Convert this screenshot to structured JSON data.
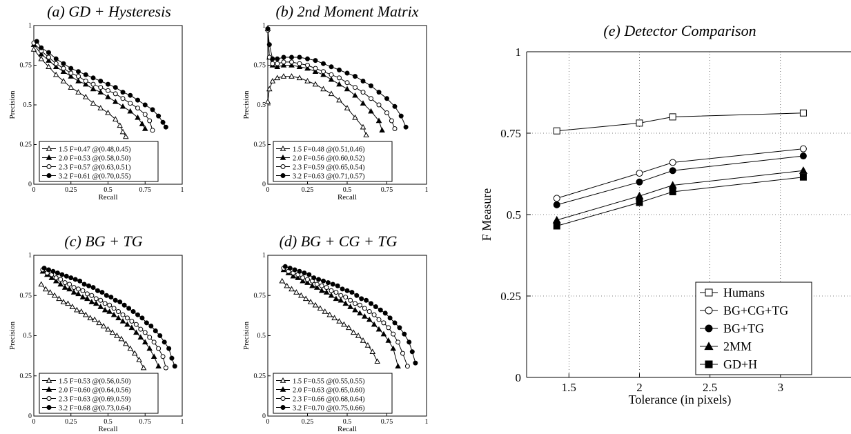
{
  "chart_data": [
    {
      "type": "line",
      "title": "(a) GD + Hysteresis",
      "xlabel": "Recall",
      "ylabel": "Precision",
      "xlim": [
        0,
        1
      ],
      "ylim": [
        0,
        1
      ],
      "xticks": [
        "0",
        "0.25",
        "0.5",
        "0.75",
        "1"
      ],
      "yticks": [
        "0",
        "0.25",
        "0.5",
        "0.75",
        "1"
      ],
      "grid": false,
      "legend_position": "bottom-left",
      "series": [
        {
          "name": "1.5 F=0.47 @(0.48,0.45)",
          "marker": "triangle-open",
          "x": [
            0.0,
            0.05,
            0.1,
            0.15,
            0.2,
            0.25,
            0.3,
            0.35,
            0.4,
            0.45,
            0.5,
            0.55,
            0.58,
            0.6,
            0.62
          ],
          "y": [
            0.85,
            0.79,
            0.74,
            0.69,
            0.65,
            0.61,
            0.58,
            0.55,
            0.51,
            0.48,
            0.45,
            0.41,
            0.37,
            0.33,
            0.3
          ]
        },
        {
          "name": "2.0 F=0.53 @(0.58,0.50)",
          "marker": "triangle-filled",
          "x": [
            0.0,
            0.05,
            0.1,
            0.15,
            0.2,
            0.25,
            0.3,
            0.35,
            0.4,
            0.45,
            0.5,
            0.55,
            0.6,
            0.65,
            0.7,
            0.73,
            0.75
          ],
          "y": [
            0.88,
            0.82,
            0.78,
            0.74,
            0.71,
            0.68,
            0.65,
            0.63,
            0.6,
            0.58,
            0.55,
            0.52,
            0.49,
            0.46,
            0.42,
            0.38,
            0.35
          ]
        },
        {
          "name": "2.3 F=0.57 @(0.63,0.51)",
          "marker": "circle-open",
          "x": [
            0.0,
            0.05,
            0.1,
            0.15,
            0.2,
            0.25,
            0.3,
            0.35,
            0.4,
            0.45,
            0.5,
            0.55,
            0.6,
            0.65,
            0.7,
            0.75,
            0.78,
            0.8
          ],
          "y": [
            0.89,
            0.84,
            0.8,
            0.76,
            0.73,
            0.7,
            0.68,
            0.65,
            0.63,
            0.61,
            0.59,
            0.57,
            0.54,
            0.51,
            0.48,
            0.44,
            0.4,
            0.34
          ]
        },
        {
          "name": "3.2 F=0.61 @(0.70,0.55)",
          "marker": "circle-filled",
          "x": [
            0.02,
            0.05,
            0.1,
            0.15,
            0.2,
            0.25,
            0.3,
            0.35,
            0.4,
            0.45,
            0.5,
            0.55,
            0.6,
            0.65,
            0.7,
            0.75,
            0.8,
            0.84,
            0.87,
            0.89
          ],
          "y": [
            0.9,
            0.86,
            0.83,
            0.79,
            0.76,
            0.73,
            0.71,
            0.69,
            0.67,
            0.65,
            0.63,
            0.61,
            0.58,
            0.56,
            0.53,
            0.5,
            0.47,
            0.43,
            0.39,
            0.36
          ]
        }
      ]
    },
    {
      "type": "line",
      "title": "(b) 2nd Moment Matrix",
      "xlabel": "Recall",
      "ylabel": "Precision",
      "xlim": [
        0,
        1
      ],
      "ylim": [
        0,
        1
      ],
      "xticks": [
        "0",
        "0.25",
        "0.5",
        "0.75",
        "1"
      ],
      "yticks": [
        "0",
        "0.25",
        "0.5",
        "0.75",
        "1"
      ],
      "grid": false,
      "legend_position": "bottom-left",
      "series": [
        {
          "name": "1.5 F=0.48 @(0.51,0.46)",
          "marker": "triangle-open",
          "x": [
            0.0,
            0.01,
            0.03,
            0.06,
            0.1,
            0.15,
            0.2,
            0.25,
            0.3,
            0.35,
            0.4,
            0.45,
            0.5,
            0.55,
            0.6,
            0.62
          ],
          "y": [
            0.52,
            0.6,
            0.65,
            0.67,
            0.68,
            0.68,
            0.67,
            0.65,
            0.63,
            0.6,
            0.57,
            0.53,
            0.48,
            0.42,
            0.36,
            0.31
          ]
        },
        {
          "name": "2.0 F=0.56 @(0.60,0.52)",
          "marker": "triangle-filled",
          "x": [
            0.0,
            0.01,
            0.03,
            0.06,
            0.1,
            0.15,
            0.2,
            0.25,
            0.3,
            0.35,
            0.4,
            0.45,
            0.5,
            0.55,
            0.6,
            0.65,
            0.7,
            0.72
          ],
          "y": [
            0.98,
            0.8,
            0.75,
            0.74,
            0.75,
            0.75,
            0.74,
            0.73,
            0.71,
            0.69,
            0.66,
            0.63,
            0.6,
            0.56,
            0.51,
            0.46,
            0.4,
            0.34
          ]
        },
        {
          "name": "2.3 F=0.59 @(0.65,0.54)",
          "marker": "circle-open",
          "x": [
            0.0,
            0.01,
            0.03,
            0.06,
            0.1,
            0.15,
            0.2,
            0.25,
            0.3,
            0.35,
            0.4,
            0.45,
            0.5,
            0.55,
            0.6,
            0.65,
            0.7,
            0.75,
            0.78,
            0.8
          ],
          "y": [
            0.97,
            0.8,
            0.76,
            0.76,
            0.77,
            0.77,
            0.76,
            0.75,
            0.73,
            0.71,
            0.69,
            0.67,
            0.64,
            0.61,
            0.58,
            0.54,
            0.5,
            0.45,
            0.4,
            0.35
          ]
        },
        {
          "name": "3.2 F=0.63 @(0.71,0.57)",
          "marker": "circle-filled",
          "x": [
            0.0,
            0.01,
            0.03,
            0.06,
            0.1,
            0.15,
            0.2,
            0.25,
            0.3,
            0.35,
            0.4,
            0.45,
            0.5,
            0.55,
            0.6,
            0.65,
            0.7,
            0.75,
            0.8,
            0.84,
            0.87
          ],
          "y": [
            0.98,
            0.88,
            0.79,
            0.79,
            0.8,
            0.8,
            0.8,
            0.79,
            0.78,
            0.76,
            0.74,
            0.72,
            0.7,
            0.68,
            0.65,
            0.62,
            0.58,
            0.54,
            0.49,
            0.43,
            0.36
          ]
        }
      ]
    },
    {
      "type": "line",
      "title": "(c) BG + TG",
      "xlabel": "Recall",
      "ylabel": "Precision",
      "xlim": [
        0,
        1
      ],
      "ylim": [
        0,
        1
      ],
      "xticks": [
        "0",
        "0.25",
        "0.5",
        "0.75",
        "1"
      ],
      "yticks": [
        "0",
        "0.25",
        "0.5",
        "0.75",
        "1"
      ],
      "grid": false,
      "legend_position": "bottom-left",
      "series": [
        {
          "name": "1.5 F=0.53 @(0.56,0.50)",
          "marker": "triangle-open",
          "x": [
            0.05,
            0.08,
            0.11,
            0.14,
            0.17,
            0.2,
            0.23,
            0.26,
            0.29,
            0.32,
            0.35,
            0.38,
            0.41,
            0.44,
            0.47,
            0.5,
            0.53,
            0.56,
            0.59,
            0.62,
            0.65,
            0.68,
            0.71,
            0.74
          ],
          "y": [
            0.82,
            0.79,
            0.77,
            0.75,
            0.73,
            0.71,
            0.7,
            0.68,
            0.66,
            0.65,
            0.63,
            0.61,
            0.6,
            0.58,
            0.56,
            0.54,
            0.52,
            0.5,
            0.48,
            0.45,
            0.42,
            0.39,
            0.35,
            0.3
          ]
        },
        {
          "name": "2.0 F=0.60 @(0.64,0.56)",
          "marker": "triangle-filled",
          "x": [
            0.06,
            0.09,
            0.12,
            0.15,
            0.18,
            0.21,
            0.24,
            0.27,
            0.3,
            0.33,
            0.36,
            0.39,
            0.42,
            0.45,
            0.48,
            0.51,
            0.54,
            0.57,
            0.6,
            0.63,
            0.66,
            0.69,
            0.72,
            0.75,
            0.78,
            0.81,
            0.84
          ],
          "y": [
            0.9,
            0.88,
            0.86,
            0.84,
            0.82,
            0.8,
            0.79,
            0.77,
            0.76,
            0.74,
            0.73,
            0.71,
            0.7,
            0.68,
            0.66,
            0.65,
            0.63,
            0.61,
            0.59,
            0.57,
            0.55,
            0.52,
            0.49,
            0.46,
            0.42,
            0.37,
            0.31
          ]
        },
        {
          "name": "2.3 F=0.63 @(0.69,0.59)",
          "marker": "circle-open",
          "x": [
            0.06,
            0.09,
            0.12,
            0.15,
            0.18,
            0.21,
            0.24,
            0.27,
            0.3,
            0.33,
            0.36,
            0.39,
            0.42,
            0.45,
            0.48,
            0.51,
            0.54,
            0.57,
            0.6,
            0.63,
            0.66,
            0.69,
            0.72,
            0.75,
            0.78,
            0.81,
            0.84,
            0.87,
            0.89
          ],
          "y": [
            0.91,
            0.89,
            0.88,
            0.86,
            0.85,
            0.83,
            0.82,
            0.8,
            0.79,
            0.78,
            0.76,
            0.75,
            0.73,
            0.72,
            0.7,
            0.69,
            0.67,
            0.65,
            0.63,
            0.61,
            0.59,
            0.57,
            0.54,
            0.52,
            0.49,
            0.46,
            0.42,
            0.37,
            0.3
          ]
        },
        {
          "name": "3.2 F=0.68 @(0.73,0.64)",
          "marker": "circle-filled",
          "x": [
            0.07,
            0.1,
            0.13,
            0.16,
            0.19,
            0.22,
            0.25,
            0.28,
            0.31,
            0.34,
            0.37,
            0.4,
            0.43,
            0.46,
            0.49,
            0.52,
            0.55,
            0.58,
            0.61,
            0.64,
            0.67,
            0.7,
            0.73,
            0.76,
            0.79,
            0.82,
            0.85,
            0.88,
            0.91,
            0.93,
            0.95
          ],
          "y": [
            0.92,
            0.91,
            0.9,
            0.89,
            0.88,
            0.87,
            0.86,
            0.85,
            0.84,
            0.82,
            0.81,
            0.8,
            0.78,
            0.77,
            0.75,
            0.74,
            0.72,
            0.71,
            0.69,
            0.67,
            0.65,
            0.63,
            0.61,
            0.58,
            0.56,
            0.53,
            0.5,
            0.46,
            0.42,
            0.36,
            0.31
          ]
        }
      ]
    },
    {
      "type": "line",
      "title": "(d) BG + CG + TG",
      "xlabel": "Recall",
      "ylabel": "Precision",
      "xlim": [
        0,
        1
      ],
      "ylim": [
        0,
        1
      ],
      "xticks": [
        "0",
        "0.25",
        "0.5",
        "0.75",
        "1"
      ],
      "yticks": [
        "0",
        "0.25",
        "0.5",
        "0.75",
        "1"
      ],
      "grid": false,
      "legend_position": "bottom-left",
      "series": [
        {
          "name": "1.5 F=0.55 @(0.55,0.55)",
          "marker": "triangle-open",
          "x": [
            0.09,
            0.12,
            0.15,
            0.18,
            0.21,
            0.24,
            0.27,
            0.3,
            0.33,
            0.36,
            0.39,
            0.42,
            0.45,
            0.48,
            0.51,
            0.54,
            0.57,
            0.6,
            0.63,
            0.66,
            0.69
          ],
          "y": [
            0.84,
            0.81,
            0.79,
            0.77,
            0.75,
            0.73,
            0.71,
            0.69,
            0.67,
            0.65,
            0.63,
            0.61,
            0.59,
            0.57,
            0.55,
            0.52,
            0.5,
            0.47,
            0.44,
            0.4,
            0.34
          ]
        },
        {
          "name": "2.0 F=0.63 @(0.65,0.60)",
          "marker": "triangle-filled",
          "x": [
            0.1,
            0.13,
            0.16,
            0.19,
            0.22,
            0.25,
            0.28,
            0.31,
            0.34,
            0.37,
            0.4,
            0.43,
            0.46,
            0.49,
            0.52,
            0.55,
            0.58,
            0.61,
            0.64,
            0.67,
            0.7,
            0.73,
            0.76,
            0.79,
            0.82
          ],
          "y": [
            0.91,
            0.89,
            0.87,
            0.86,
            0.84,
            0.83,
            0.81,
            0.8,
            0.78,
            0.77,
            0.75,
            0.73,
            0.72,
            0.7,
            0.68,
            0.66,
            0.64,
            0.62,
            0.6,
            0.57,
            0.54,
            0.51,
            0.47,
            0.42,
            0.31
          ]
        },
        {
          "name": "2.3 F=0.66 @(0.68,0.64)",
          "marker": "circle-open",
          "x": [
            0.1,
            0.13,
            0.16,
            0.19,
            0.22,
            0.25,
            0.28,
            0.31,
            0.34,
            0.37,
            0.4,
            0.43,
            0.46,
            0.49,
            0.52,
            0.55,
            0.58,
            0.61,
            0.64,
            0.67,
            0.7,
            0.73,
            0.76,
            0.79,
            0.82,
            0.85,
            0.88
          ],
          "y": [
            0.92,
            0.9,
            0.89,
            0.88,
            0.86,
            0.85,
            0.84,
            0.82,
            0.81,
            0.8,
            0.78,
            0.77,
            0.75,
            0.74,
            0.72,
            0.7,
            0.69,
            0.67,
            0.65,
            0.63,
            0.6,
            0.58,
            0.55,
            0.51,
            0.46,
            0.39,
            0.31
          ]
        },
        {
          "name": "3.2 F=0.70 @(0.75,0.66)",
          "marker": "circle-filled",
          "x": [
            0.11,
            0.14,
            0.17,
            0.2,
            0.23,
            0.26,
            0.29,
            0.32,
            0.35,
            0.38,
            0.41,
            0.44,
            0.47,
            0.5,
            0.53,
            0.56,
            0.59,
            0.62,
            0.65,
            0.68,
            0.71,
            0.74,
            0.77,
            0.8,
            0.83,
            0.86,
            0.89,
            0.91,
            0.93
          ],
          "y": [
            0.93,
            0.92,
            0.91,
            0.9,
            0.89,
            0.88,
            0.86,
            0.85,
            0.84,
            0.83,
            0.82,
            0.81,
            0.79,
            0.78,
            0.77,
            0.75,
            0.73,
            0.72,
            0.7,
            0.68,
            0.66,
            0.64,
            0.61,
            0.58,
            0.55,
            0.51,
            0.46,
            0.4,
            0.33
          ]
        }
      ]
    },
    {
      "type": "line",
      "title": "(e) Detector Comparison",
      "xlabel": "Tolerance (in pixels)",
      "ylabel": "F Measure",
      "xlim": [
        1.2,
        3.5
      ],
      "ylim": [
        0,
        1
      ],
      "xticks": [
        "1.5",
        "2",
        "2.5",
        "3"
      ],
      "yticks": [
        "0",
        "0.25",
        "0.5",
        "0.75",
        "1"
      ],
      "grid": true,
      "legend_position": "bottom-right",
      "x": [
        1.414,
        2.0,
        2.236,
        3.162
      ],
      "series": [
        {
          "name": "Humans",
          "marker": "square-open",
          "y": [
            0.757,
            0.781,
            0.8,
            0.812
          ]
        },
        {
          "name": "BG+CG+TG",
          "marker": "circle-open",
          "y": [
            0.55,
            0.627,
            0.66,
            0.702
          ]
        },
        {
          "name": "BG+TG",
          "marker": "circle-filled",
          "y": [
            0.53,
            0.6,
            0.635,
            0.68
          ]
        },
        {
          "name": "2MM",
          "marker": "triangle-filled",
          "y": [
            0.483,
            0.557,
            0.59,
            0.635
          ]
        },
        {
          "name": "GD+H",
          "marker": "square-filled",
          "y": [
            0.465,
            0.537,
            0.57,
            0.615
          ]
        }
      ]
    }
  ]
}
